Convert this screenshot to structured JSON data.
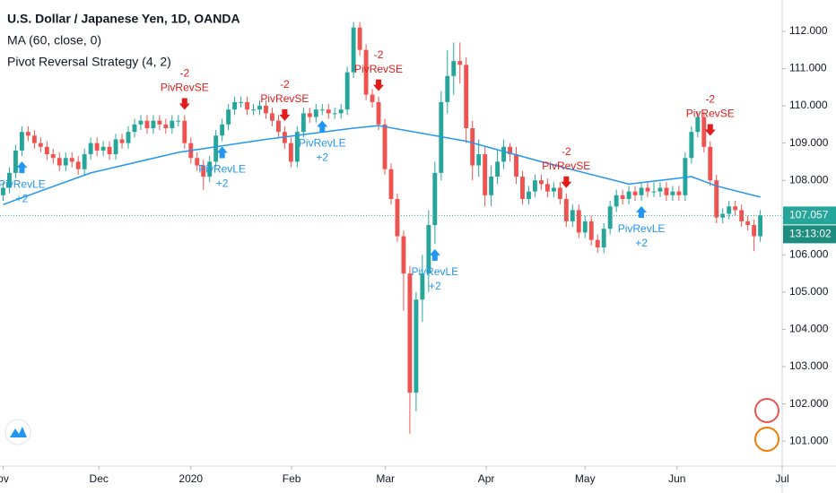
{
  "chart_data": {
    "type": "candlestick",
    "title": "U.S. Dollar / Japanese Yen, 1D, OANDA",
    "indicators": [
      "MA (60, close, 0)",
      "Pivot Reversal Strategy (4, 2)"
    ],
    "up_color": "#26a69a",
    "down_color": "#ef5350",
    "xlim": [
      -0.5,
      124.5
    ],
    "xticks": [
      {
        "value": 0,
        "label": "ov"
      },
      {
        "value": 15.3,
        "label": "Dec"
      },
      {
        "value": 30,
        "label": "2020"
      },
      {
        "value": 46.1,
        "label": "Feb"
      },
      {
        "value": 61.1,
        "label": "Mar"
      },
      {
        "value": 77.2,
        "label": "Apr"
      },
      {
        "value": 93,
        "label": "May"
      },
      {
        "value": 107.7,
        "label": "Jun"
      },
      {
        "value": 124.5,
        "label": "Jul"
      }
    ],
    "ylim": [
      100.33,
      112.84
    ],
    "yticks": [
      {
        "value": 101,
        "label": "101.000"
      },
      {
        "value": 102,
        "label": "102.000"
      },
      {
        "value": 103,
        "label": "103.000"
      },
      {
        "value": 104,
        "label": "104.000"
      },
      {
        "value": 105,
        "label": "105.000"
      },
      {
        "value": 106,
        "label": "106.000"
      },
      {
        "value": 107,
        "label": "107.000"
      },
      {
        "value": 108,
        "label": "108.000"
      },
      {
        "value": 109,
        "label": "109.000"
      },
      {
        "value": 110,
        "label": "110.000"
      },
      {
        "value": 111,
        "label": "111.000"
      },
      {
        "value": 112,
        "label": "112.000"
      }
    ],
    "candles": [
      [
        107.6,
        107.95,
        107.45,
        107.8
      ],
      [
        107.8,
        108.35,
        107.65,
        108.2
      ],
      [
        108.2,
        108.95,
        108.05,
        108.8
      ],
      [
        108.8,
        109.45,
        108.65,
        109.3
      ],
      [
        109.3,
        109.45,
        109.05,
        109.2
      ],
      [
        109.2,
        109.35,
        108.85,
        109.0
      ],
      [
        109.0,
        109.15,
        108.75,
        108.9
      ],
      [
        108.9,
        109.05,
        108.55,
        108.7
      ],
      [
        108.7,
        108.85,
        108.45,
        108.6
      ],
      [
        108.6,
        108.75,
        108.25,
        108.4
      ],
      [
        108.4,
        108.75,
        108.25,
        108.6
      ],
      [
        108.6,
        108.75,
        108.35,
        108.5
      ],
      [
        108.5,
        108.65,
        108.15,
        108.3
      ],
      [
        108.3,
        108.85,
        108.15,
        108.7
      ],
      [
        108.7,
        109.15,
        108.55,
        109.0
      ],
      [
        109.0,
        109.15,
        108.65,
        108.8
      ],
      [
        108.8,
        109.05,
        108.65,
        108.9
      ],
      [
        108.9,
        109.05,
        108.55,
        108.7
      ],
      [
        108.7,
        109.25,
        108.55,
        109.1
      ],
      [
        109.1,
        109.25,
        108.85,
        109.0
      ],
      [
        109.0,
        109.45,
        108.85,
        109.3
      ],
      [
        109.3,
        109.65,
        109.15,
        109.5
      ],
      [
        109.5,
        109.75,
        109.35,
        109.6
      ],
      [
        109.6,
        109.75,
        109.25,
        109.4
      ],
      [
        109.4,
        109.75,
        109.25,
        109.6
      ],
      [
        109.6,
        109.75,
        109.35,
        109.5
      ],
      [
        109.5,
        109.65,
        109.25,
        109.4
      ],
      [
        109.4,
        109.75,
        109.25,
        109.6
      ],
      [
        109.6,
        109.75,
        109.45,
        109.6
      ],
      [
        109.6,
        109.75,
        108.85,
        109.0
      ],
      [
        109.0,
        109.15,
        108.45,
        108.6
      ],
      [
        108.6,
        108.75,
        108.25,
        108.4
      ],
      [
        108.4,
        108.55,
        107.75,
        108.1
      ],
      [
        108.1,
        108.65,
        107.95,
        108.5
      ],
      [
        108.5,
        109.35,
        108.35,
        109.2
      ],
      [
        109.2,
        109.65,
        109.05,
        109.5
      ],
      [
        109.5,
        110.05,
        109.35,
        109.9
      ],
      [
        109.9,
        110.25,
        109.75,
        110.1
      ],
      [
        110.1,
        110.25,
        109.95,
        110.1
      ],
      [
        110.1,
        110.25,
        109.75,
        109.9
      ],
      [
        109.9,
        110.05,
        109.75,
        109.9
      ],
      [
        109.9,
        110.15,
        109.75,
        110.0
      ],
      [
        110.0,
        110.15,
        109.65,
        109.8
      ],
      [
        109.8,
        109.95,
        109.45,
        109.6
      ],
      [
        109.6,
        109.75,
        109.15,
        109.3
      ],
      [
        109.3,
        109.45,
        108.85,
        109.0
      ],
      [
        109.0,
        109.15,
        108.35,
        108.5
      ],
      [
        108.5,
        109.45,
        108.35,
        109.3
      ],
      [
        109.3,
        109.95,
        109.15,
        109.8
      ],
      [
        109.8,
        109.95,
        109.55,
        109.7
      ],
      [
        109.7,
        110.05,
        109.55,
        109.9
      ],
      [
        109.9,
        110.05,
        109.75,
        109.9
      ],
      [
        109.9,
        110.05,
        109.65,
        109.8
      ],
      [
        109.8,
        109.95,
        109.65,
        109.8
      ],
      [
        109.8,
        110.05,
        109.65,
        109.9
      ],
      [
        109.9,
        111.05,
        109.75,
        110.9
      ],
      [
        110.9,
        112.25,
        110.75,
        112.1
      ],
      [
        112.1,
        112.25,
        111.35,
        111.5
      ],
      [
        111.5,
        111.65,
        110.15,
        110.3
      ],
      [
        110.3,
        110.45,
        109.95,
        110.1
      ],
      [
        110.1,
        110.25,
        109.35,
        109.5
      ],
      [
        109.5,
        109.65,
        108.15,
        108.3
      ],
      [
        108.3,
        108.45,
        107.35,
        107.5
      ],
      [
        107.5,
        107.65,
        106.35,
        106.5
      ],
      [
        106.5,
        106.65,
        104.5,
        105.5
      ],
      [
        105.5,
        105.7,
        101.2,
        102.3
      ],
      [
        102.3,
        105.0,
        101.8,
        104.8
      ],
      [
        104.8,
        106.0,
        104.2,
        105.5
      ],
      [
        105.5,
        107.2,
        105.0,
        106.8
      ],
      [
        106.8,
        108.5,
        106.3,
        108.2
      ],
      [
        108.2,
        110.4,
        108.0,
        110.1
      ],
      [
        110.1,
        111.5,
        109.8,
        110.8
      ],
      [
        110.8,
        111.7,
        110.3,
        111.2
      ],
      [
        111.2,
        111.7,
        110.6,
        111.1
      ],
      [
        111.1,
        111.3,
        109.0,
        109.4
      ],
      [
        109.4,
        109.6,
        108.0,
        108.4
      ],
      [
        108.4,
        109.1,
        108.1,
        108.7
      ],
      [
        108.7,
        108.9,
        107.3,
        107.6
      ],
      [
        107.6,
        108.4,
        107.3,
        108.1
      ],
      [
        108.1,
        108.8,
        107.9,
        108.5
      ],
      [
        108.5,
        109.1,
        108.3,
        108.9
      ],
      [
        108.9,
        109.0,
        108.5,
        108.7
      ],
      [
        108.7,
        108.9,
        107.9,
        108.1
      ],
      [
        108.1,
        108.25,
        107.35,
        107.5
      ],
      [
        107.5,
        107.85,
        107.35,
        107.7
      ],
      [
        107.7,
        108.15,
        107.55,
        108.0
      ],
      [
        108.0,
        108.15,
        107.75,
        107.9
      ],
      [
        107.9,
        108.05,
        107.55,
        107.7
      ],
      [
        107.7,
        107.95,
        107.55,
        107.8
      ],
      [
        107.8,
        107.95,
        107.35,
        107.5
      ],
      [
        107.5,
        107.65,
        106.75,
        106.9
      ],
      [
        106.9,
        107.35,
        106.75,
        107.2
      ],
      [
        107.2,
        107.35,
        106.45,
        106.6
      ],
      [
        106.6,
        107.05,
        106.45,
        106.9
      ],
      [
        106.9,
        107.05,
        106.25,
        106.4
      ],
      [
        106.4,
        106.55,
        106.05,
        106.2
      ],
      [
        106.2,
        106.85,
        106.05,
        106.7
      ],
      [
        106.7,
        107.45,
        106.55,
        107.3
      ],
      [
        107.3,
        107.75,
        107.15,
        107.6
      ],
      [
        107.6,
        107.75,
        107.35,
        107.5
      ],
      [
        107.5,
        107.85,
        107.35,
        107.7
      ],
      [
        107.7,
        107.85,
        107.45,
        107.6
      ],
      [
        107.6,
        107.95,
        107.45,
        107.8
      ],
      [
        107.8,
        107.95,
        107.55,
        107.7
      ],
      [
        107.7,
        107.95,
        107.55,
        107.7
      ],
      [
        107.7,
        107.95,
        107.55,
        107.8
      ],
      [
        107.8,
        107.95,
        107.45,
        107.6
      ],
      [
        107.6,
        107.85,
        107.45,
        107.7
      ],
      [
        107.7,
        107.85,
        107.45,
        107.6
      ],
      [
        107.6,
        108.75,
        107.45,
        108.6
      ],
      [
        108.6,
        109.45,
        108.45,
        109.3
      ],
      [
        109.3,
        109.85,
        109.15,
        109.7
      ],
      [
        109.7,
        109.85,
        108.75,
        108.9
      ],
      [
        108.9,
        109.05,
        107.85,
        108.0
      ],
      [
        108.0,
        108.15,
        106.85,
        107.0
      ],
      [
        107.0,
        107.25,
        106.85,
        107.1
      ],
      [
        107.1,
        107.45,
        106.95,
        107.3
      ],
      [
        107.3,
        107.45,
        107.05,
        107.2
      ],
      [
        107.2,
        107.35,
        106.75,
        106.9
      ],
      [
        106.9,
        107.05,
        106.65,
        106.8
      ],
      [
        106.8,
        106.95,
        106.1,
        106.5
      ],
      [
        106.5,
        107.2,
        106.35,
        107.057
      ]
    ],
    "ma": {
      "color": "#2196f3",
      "x": [
        0,
        14,
        28,
        42,
        56,
        60,
        74,
        86,
        100,
        110,
        114,
        121
      ],
      "values": [
        107.35,
        108.2,
        108.75,
        109.1,
        109.4,
        109.47,
        109.05,
        108.5,
        107.9,
        108.1,
        107.85,
        107.55
      ]
    },
    "signals": [
      {
        "at": 3,
        "label": "PivRevLE",
        "qty": "+2"
      },
      {
        "at": 29,
        "label": "PivRevSE",
        "qty": "-2"
      },
      {
        "at": 35,
        "label": "PivRevLE",
        "qty": "+2"
      },
      {
        "at": 45,
        "label": "PivRevSE",
        "qty": "-2"
      },
      {
        "at": 51,
        "label": "PivRevLE",
        "qty": "+2"
      },
      {
        "at": 60,
        "label": "PivRevSE",
        "qty": "-2"
      },
      {
        "at": 69,
        "label": "PivRevLE",
        "qty": "+2"
      },
      {
        "at": 90,
        "label": "PivRevSE",
        "qty": "-2"
      },
      {
        "at": 102,
        "label": "PivRevLE",
        "qty": "+2"
      },
      {
        "at": 113,
        "label": "PivRevSE",
        "qty": "-2"
      }
    ],
    "long_color": "#2196f3",
    "short_color": "#e21b1b",
    "last_price": 107.057,
    "countdown": "13:13:02"
  }
}
